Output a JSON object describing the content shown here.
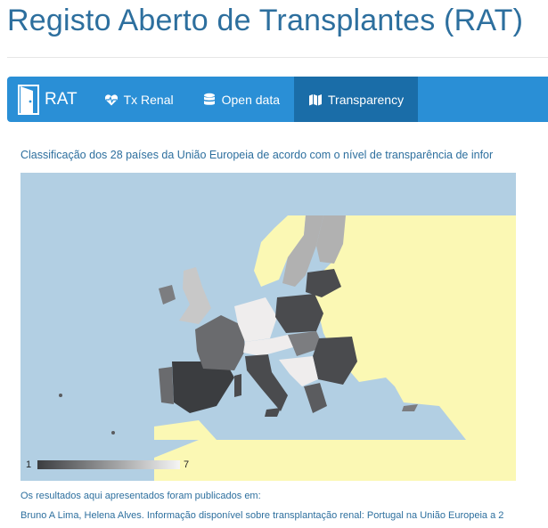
{
  "header": {
    "title": "Registo Aberto de Transplantes (RAT)"
  },
  "nav": {
    "brand_label": "RAT",
    "items": [
      {
        "label": "Tx Renal",
        "icon": "heartbeat-icon",
        "active": false
      },
      {
        "label": "Open data",
        "icon": "database-icon",
        "active": false
      },
      {
        "label": "Transparency",
        "icon": "map-icon",
        "active": true
      }
    ]
  },
  "main": {
    "intro": "Classificação dos 28 países da União Europeia de acordo com o nível de transparência de infor",
    "map": {
      "legend_min": "1",
      "legend_max": "7",
      "colors": {
        "sea": "#b2cfe3",
        "non_eu": "#fbf8b4",
        "scale_low": "#3b3d40",
        "scale_high": "#f5f5f5"
      }
    },
    "published_label": "Os resultados aqui apresentados foram publicados em:",
    "citation": "Bruno A Lima, Helena Alves. Informação disponível sobre transplantação renal: Portugal na União Europeia a 2"
  }
}
